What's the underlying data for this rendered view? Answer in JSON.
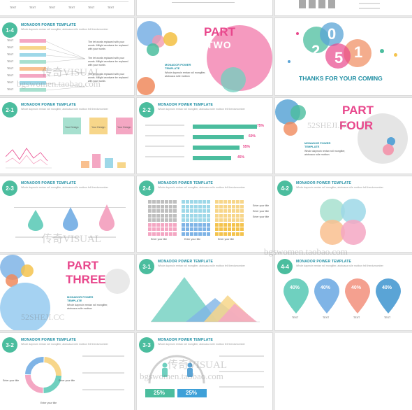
{
  "template_title": "MONADOR POWER TEMPLATE",
  "subtitle": "Whole daymoin rentan roll mongliter, atoboaca rulle motbon fell therdumomber",
  "slides": {
    "s14": {
      "num": "1-4",
      "labels": [
        "TEXT",
        "TEXT",
        "TEXT",
        "TEXT",
        "TEXT",
        "TEXT",
        "TEXT",
        "TEXT"
      ],
      "notes": [
        "The tet words replaced with your words. Milight wordsare be replaced with your words",
        "The tet words replaced with your words. Milight wordsare be replaced with your words",
        "The tet words replaced with your words. Milight wordsare be replaced with your words"
      ]
    },
    "part_two": {
      "part": "PART",
      "word": "TWO",
      "caption_title": "MONADOR POWER TEMPLATE",
      "caption_text": "Whole daymoin rentan roll mongliter, atoboaca rulle motbon"
    },
    "thanks": {
      "digits": [
        "2",
        "0",
        "1",
        "5"
      ],
      "text": "THANKS FOR YOUR COMING"
    },
    "s21": {
      "num": "2-1",
      "boxes": [
        "Your Design",
        "Your Design",
        "Your Design"
      ]
    },
    "s22": {
      "num": "2-2",
      "percents": [
        "75%",
        "60%",
        "55%",
        "45%"
      ],
      "values": [
        75,
        60,
        55,
        45
      ]
    },
    "part_four": {
      "part": "PART",
      "word": "FOUR",
      "caption_title": "MONADOR POWER TEMPLATE",
      "caption_text": "Whole daymoin rentan roll mongliter, atoboaca rulle motbon"
    },
    "s23": {
      "num": "2-3"
    },
    "s24": {
      "num": "2-4",
      "captions": [
        "Enter your title",
        "Enter your title",
        "Enter your title"
      ],
      "legend": [
        "Enter your title",
        "Enter your title",
        "Enter your title"
      ]
    },
    "s42": {
      "num": "4-2"
    },
    "part_three": {
      "part": "PART",
      "word": "THREE",
      "caption_title": "MONADOR POWER TEMPLATE",
      "caption_text": "Whole daymoin rentan roll mongliter, atoboaca rulle motbon"
    },
    "s31": {
      "num": "3-1"
    },
    "s44": {
      "num": "4-4",
      "percents": [
        "40%",
        "40%",
        "40%",
        "40%"
      ],
      "labels": [
        "TEXT",
        "TEXT",
        "TEXT",
        "TEXT"
      ]
    },
    "s32": {
      "num": "3-2",
      "labels": [
        "Enter your title",
        "Enter your title",
        "Enter your title"
      ]
    },
    "s33": {
      "num": "3-3",
      "percents": [
        "25%",
        "25%"
      ]
    }
  },
  "top_strip_labels": [
    "TEXT",
    "TEXT",
    "TEXT",
    "TEXT",
    "TEXT",
    "TEXT"
  ],
  "watermarks": [
    "传奇VISUAL",
    "bgswomen.taobao.com",
    "52SHEJI.CC",
    "传奇VISUAL",
    "bgswomen.taobao.com",
    "52SHEJI.CC",
    "传奇VISUAL",
    "bgswomen.taobao.com"
  ],
  "colors": {
    "teal": "#4bbd9e",
    "pink": "#e8478c",
    "blue": "#5aa4d6",
    "orange": "#f08a5d",
    "yellow": "#f4c34d",
    "navy": "#1f8ea3"
  }
}
